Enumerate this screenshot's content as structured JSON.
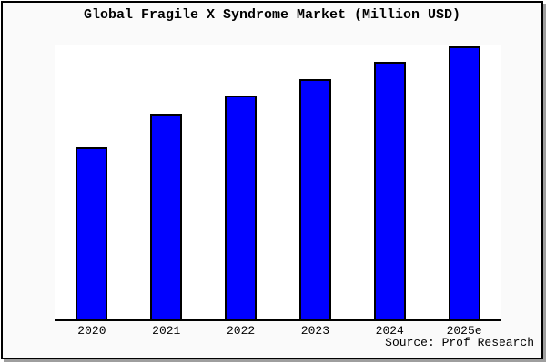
{
  "window": {
    "background": "#ffffff",
    "card_background": "#fafafa",
    "plot_background": "#ffffff",
    "border_color": "#000000",
    "shadow_color": "#9e9e9e"
  },
  "chart_data": {
    "type": "bar",
    "title": "Global Fragile X Syndrome Market (Million USD)",
    "categories": [
      "2020",
      "2021",
      "2022",
      "2023",
      "2024",
      "2025e"
    ],
    "values": [
      189,
      226,
      246,
      264,
      283,
      300
    ],
    "xlabel": "",
    "ylabel": "",
    "ylim": [
      0,
      301
    ],
    "grid": false,
    "y_axis_labels_visible": false,
    "legend": "none",
    "bar_color": "#0000ff",
    "bar_edge_color": "#000000",
    "source": "Source: Prof Research"
  }
}
